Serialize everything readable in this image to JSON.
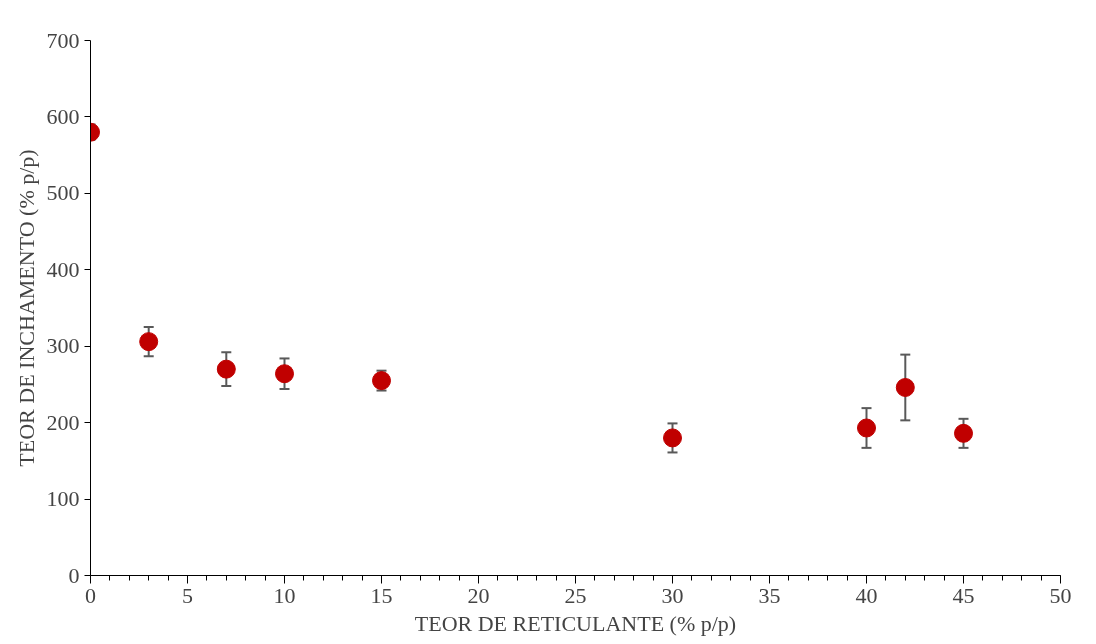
{
  "chart_data": {
    "type": "scatter",
    "xlabel": "TEOR DE RETICULANTE (% p/p)",
    "ylabel": "TEOR DE INCHAMENTO (% p/p)",
    "x": [
      0,
      3,
      7,
      10,
      15,
      30,
      40,
      42,
      45
    ],
    "series": [
      {
        "color": "#c00000",
        "values": [
          580,
          306,
          270,
          264,
          255,
          180,
          193,
          246,
          186
        ],
        "errors": [
          10,
          19,
          22,
          20,
          13,
          19,
          26,
          43,
          19
        ]
      }
    ],
    "xlim": [
      0,
      50
    ],
    "ylim": [
      0,
      700
    ],
    "xticks": [
      0,
      5,
      10,
      15,
      20,
      25,
      30,
      35,
      40,
      45,
      50
    ],
    "yticks": [
      0,
      100,
      200,
      300,
      400,
      500,
      600,
      700
    ],
    "grid": false,
    "marker": "circle"
  }
}
